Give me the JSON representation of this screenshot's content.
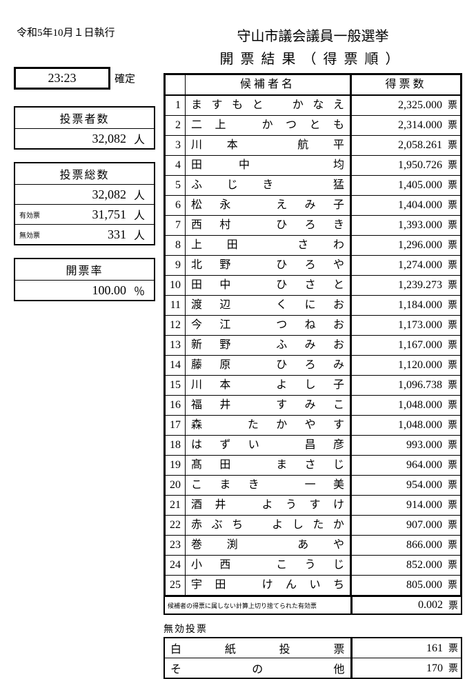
{
  "header": {
    "date": "令和5年10月１日執行",
    "title1": "守山市議会議員一般選挙",
    "title2": "開票結果（得票順）"
  },
  "time": {
    "value": "23:23",
    "status": "確定"
  },
  "voters": {
    "label": "投票者数",
    "count": "32,082",
    "unit": "人"
  },
  "totals": {
    "label": "投票総数",
    "rows": [
      {
        "label": "",
        "value": "32,082",
        "unit": "人"
      },
      {
        "label": "有効票",
        "value": "31,751",
        "unit": "人"
      },
      {
        "label": "無効票",
        "value": "331",
        "unit": "人"
      }
    ]
  },
  "rate": {
    "label": "開票率",
    "value": "100.00",
    "unit": "％"
  },
  "table": {
    "headers": {
      "name": "候補者名",
      "votes": "得票数"
    },
    "vote_unit": "票",
    "rows": [
      {
        "rank": "1",
        "name_chars": [
          "ま",
          "す",
          "も",
          "と",
          "",
          "か",
          "な",
          "え"
        ],
        "votes": "2,325.000"
      },
      {
        "rank": "2",
        "name_chars": [
          "二",
          "上",
          "",
          "か",
          "つ",
          "と",
          "も"
        ],
        "votes": "2,314.000"
      },
      {
        "rank": "3",
        "name_chars": [
          "川",
          "本",
          "",
          "航",
          "平"
        ],
        "votes": "2,058.261"
      },
      {
        "rank": "4",
        "name_chars": [
          "田",
          "中",
          "",
          "均"
        ],
        "votes": "1,950.726"
      },
      {
        "rank": "5",
        "name_chars": [
          "ふ",
          "じ",
          "き",
          "",
          "猛"
        ],
        "votes": "1,405.000"
      },
      {
        "rank": "6",
        "name_chars": [
          "松",
          "永",
          "",
          "え",
          "み",
          "子"
        ],
        "votes": "1,404.000"
      },
      {
        "rank": "7",
        "name_chars": [
          "西",
          "村",
          "",
          "ひ",
          "ろ",
          "き"
        ],
        "votes": "1,393.000"
      },
      {
        "rank": "8",
        "name_chars": [
          "上",
          "田",
          "",
          "さ",
          "わ"
        ],
        "votes": "1,296.000"
      },
      {
        "rank": "9",
        "name_chars": [
          "北",
          "野",
          "",
          "ひ",
          "ろ",
          "や"
        ],
        "votes": "1,274.000"
      },
      {
        "rank": "10",
        "name_chars": [
          "田",
          "中",
          "",
          "ひ",
          "さ",
          "と"
        ],
        "votes": "1,239.273"
      },
      {
        "rank": "11",
        "name_chars": [
          "渡",
          "辺",
          "",
          "く",
          "に",
          "お"
        ],
        "votes": "1,184.000"
      },
      {
        "rank": "12",
        "name_chars": [
          "今",
          "江",
          "",
          "つ",
          "ね",
          "お"
        ],
        "votes": "1,173.000"
      },
      {
        "rank": "13",
        "name_chars": [
          "新",
          "野",
          "",
          "ふ",
          "み",
          "お"
        ],
        "votes": "1,167.000"
      },
      {
        "rank": "14",
        "name_chars": [
          "藤",
          "原",
          "",
          "ひ",
          "ろ",
          "み"
        ],
        "votes": "1,120.000"
      },
      {
        "rank": "15",
        "name_chars": [
          "川",
          "本",
          "",
          "よ",
          "し",
          "子"
        ],
        "votes": "1,096.738"
      },
      {
        "rank": "16",
        "name_chars": [
          "福",
          "井",
          "",
          "す",
          "み",
          "こ"
        ],
        "votes": "1,048.000"
      },
      {
        "rank": "17",
        "name_chars": [
          "森",
          "",
          "た",
          "か",
          "や",
          "す"
        ],
        "votes": "1,048.000"
      },
      {
        "rank": "18",
        "name_chars": [
          "は",
          "ず",
          "い",
          "",
          "昌",
          "彦"
        ],
        "votes": "993.000"
      },
      {
        "rank": "19",
        "name_chars": [
          "髙",
          "田",
          "",
          "ま",
          "さ",
          "じ"
        ],
        "votes": "964.000"
      },
      {
        "rank": "20",
        "name_chars": [
          "こ",
          "ま",
          "き",
          "",
          "一",
          "美"
        ],
        "votes": "954.000"
      },
      {
        "rank": "21",
        "name_chars": [
          "酒",
          "井",
          "",
          "よ",
          "う",
          "す",
          "け"
        ],
        "votes": "914.000"
      },
      {
        "rank": "22",
        "name_chars": [
          "赤",
          "ぶ",
          "ち",
          "",
          "よ",
          "し",
          "た",
          "か"
        ],
        "votes": "907.000"
      },
      {
        "rank": "23",
        "name_chars": [
          "巻",
          "渕",
          "",
          "あ",
          "や"
        ],
        "votes": "866.000"
      },
      {
        "rank": "24",
        "name_chars": [
          "小",
          "西",
          "",
          "こ",
          "う",
          "じ"
        ],
        "votes": "852.000"
      },
      {
        "rank": "25",
        "name_chars": [
          "宇",
          "田",
          "",
          "け",
          "ん",
          "い",
          "ち"
        ],
        "votes": "805.000"
      }
    ]
  },
  "rounding": {
    "desc": "候補者の得票に属しない計算上切り捨てられた有効票",
    "value": "0.002",
    "unit": "票"
  },
  "invalid": {
    "label": "無効投票",
    "rows": [
      {
        "label_chars": [
          "白",
          "紙",
          "投",
          "票"
        ],
        "value": "161",
        "unit": "票"
      },
      {
        "label_chars": [
          "そ",
          "の",
          "他"
        ],
        "value": "170",
        "unit": "票"
      }
    ]
  }
}
